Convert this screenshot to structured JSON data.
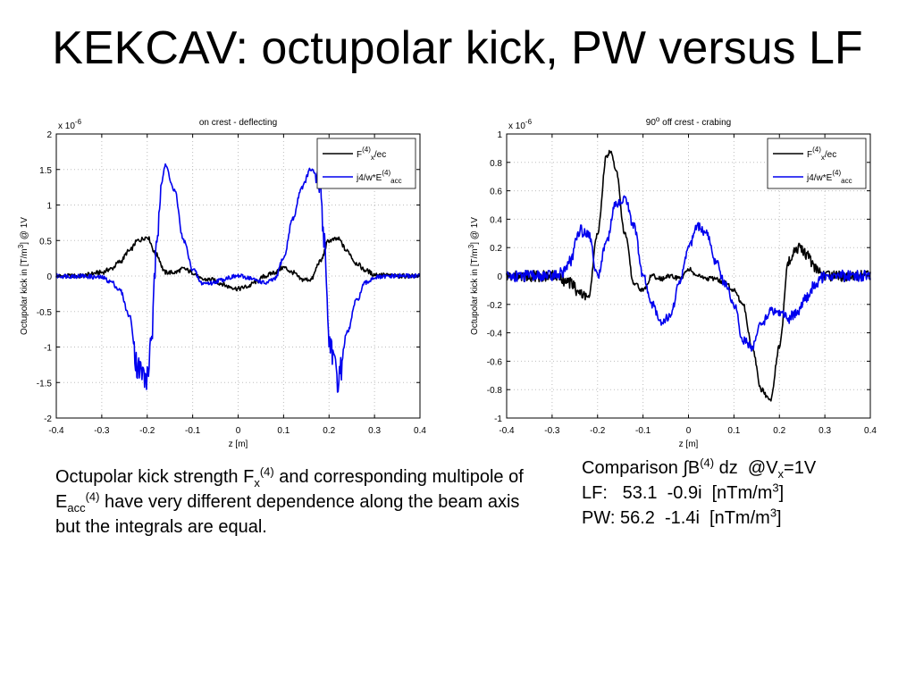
{
  "slide": {
    "title": "KEKCAV: octupolar kick, PW versus LF"
  },
  "caption": {
    "part1": "Octupolar kick strength F",
    "sub1": "x",
    "sup1": "(4)",
    "part2": " and corresponding multipole of E",
    "sub2": "acc",
    "sup2": "(4)",
    "part3": " have very different dependence along the beam axis but the integrals are equal."
  },
  "comparison": {
    "line1_a": "Comparison ∫B",
    "line1_sup": "(4)",
    "line1_b": " dz  @V",
    "line1_sub": "x",
    "line1_c": "=1V",
    "line2_a": "LF:   53.1  -0.9i  [nTm/m",
    "line2_sup": "3",
    "line2_b": "]",
    "line3_a": "PW: 56.2  -1.4i  [nTm/m",
    "line3_sup": "3",
    "line3_b": "]"
  },
  "colors": {
    "series_fx": "#000000",
    "series_eacc": "#0000ee",
    "axes": "#000000",
    "grid": "#bdbdbd"
  },
  "chart_data": [
    {
      "type": "line",
      "title": "on crest - deflecting",
      "title_sup": "",
      "title_rest": "",
      "xlabel": "z [m]",
      "ylabel_a": "Octupolar kick in [T/m",
      "ylabel_sup": "3",
      "ylabel_b": "] @ 1V",
      "exponent_base": "x 10",
      "exponent_power": "-6",
      "xlim": [
        -0.4,
        0.4
      ],
      "ylim": [
        -2,
        2
      ],
      "xticks": [
        -0.4,
        -0.3,
        -0.2,
        -0.1,
        0,
        0.1,
        0.2,
        0.3,
        0.4
      ],
      "xtick_labels": [
        "-0.4",
        "-0.3",
        "-0.2",
        "-0.1",
        "0",
        "0.1",
        "0.2",
        "0.3",
        "0.4"
      ],
      "yticks": [
        -2,
        -1.5,
        -1,
        -0.5,
        0,
        0.5,
        1,
        1.5,
        2
      ],
      "ytick_labels": [
        "-2",
        "-1.5",
        "-1",
        "-0.5",
        "0",
        "0.5",
        "1",
        "1.5",
        "2"
      ],
      "grid": true,
      "legend_position": "top-right",
      "legend": [
        {
          "base": "F",
          "sub": "x",
          "sup": "(4)",
          "rest": "/ec"
        },
        {
          "base": "j4/w*E",
          "sub": "acc",
          "sup": "(4)",
          "rest": ""
        }
      ],
      "series": [
        {
          "name": "Fx(4)/ec",
          "color": "#000000",
          "x": [
            -0.4,
            -0.35,
            -0.3,
            -0.28,
            -0.26,
            -0.24,
            -0.22,
            -0.2,
            -0.18,
            -0.16,
            -0.14,
            -0.12,
            -0.1,
            -0.08,
            -0.06,
            -0.04,
            -0.02,
            0,
            0.02,
            0.04,
            0.06,
            0.08,
            0.1,
            0.12,
            0.14,
            0.16,
            0.18,
            0.2,
            0.22,
            0.24,
            0.26,
            0.28,
            0.3,
            0.35,
            0.4
          ],
          "y": [
            0,
            0,
            0.05,
            0.1,
            0.2,
            0.35,
            0.5,
            0.55,
            0.3,
            0.05,
            0.05,
            0.1,
            0.05,
            -0.05,
            -0.05,
            -0.1,
            -0.15,
            -0.18,
            -0.15,
            -0.08,
            0.0,
            0.05,
            0.12,
            0.05,
            -0.05,
            -0.05,
            0.2,
            0.5,
            0.52,
            0.35,
            0.18,
            0.08,
            0.02,
            0,
            0
          ]
        },
        {
          "name": "j4/w*Eacc(4)",
          "color": "#0000ee",
          "x": [
            -0.4,
            -0.35,
            -0.3,
            -0.28,
            -0.26,
            -0.24,
            -0.22,
            -0.2,
            -0.19,
            -0.18,
            -0.17,
            -0.16,
            -0.14,
            -0.12,
            -0.1,
            -0.08,
            -0.06,
            -0.04,
            -0.02,
            0,
            0.02,
            0.04,
            0.06,
            0.08,
            0.1,
            0.12,
            0.14,
            0.16,
            0.18,
            0.19,
            0.2,
            0.22,
            0.24,
            0.26,
            0.28,
            0.3,
            0.35,
            0.4
          ],
          "y": [
            0,
            0,
            -0.02,
            -0.08,
            -0.2,
            -0.55,
            -1.3,
            -1.45,
            -0.8,
            0.3,
            1.3,
            1.55,
            1.2,
            0.5,
            0.1,
            -0.1,
            -0.1,
            -0.06,
            -0.02,
            0.0,
            -0.02,
            -0.06,
            -0.1,
            -0.05,
            0.25,
            0.8,
            1.25,
            1.5,
            1.3,
            0.5,
            -0.9,
            -1.45,
            -0.8,
            -0.35,
            -0.1,
            -0.02,
            0,
            0
          ]
        }
      ]
    },
    {
      "type": "line",
      "title": "90",
      "title_sup": "o",
      "title_rest": " off crest - crabing",
      "xlabel": "z [m]",
      "ylabel_a": "Octupolar kick in [T/m",
      "ylabel_sup": "3",
      "ylabel_b": "] @ 1V",
      "exponent_base": "x 10",
      "exponent_power": "-6",
      "xlim": [
        -0.4,
        0.4
      ],
      "ylim": [
        -1,
        1
      ],
      "xticks": [
        -0.4,
        -0.3,
        -0.2,
        -0.1,
        0,
        0.1,
        0.2,
        0.3,
        0.4
      ],
      "xtick_labels": [
        "-0.4",
        "-0.3",
        "-0.2",
        "-0.1",
        "0",
        "0.1",
        "0.2",
        "0.3",
        "0.4"
      ],
      "yticks": [
        -1,
        -0.8,
        -0.6,
        -0.4,
        -0.2,
        0,
        0.2,
        0.4,
        0.6,
        0.8,
        1
      ],
      "ytick_labels": [
        "-1",
        "-0.8",
        "-0.6",
        "-0.4",
        "-0.2",
        "0",
        "0.2",
        "0.4",
        "0.6",
        "0.8",
        "1"
      ],
      "grid": true,
      "legend_position": "top-right",
      "legend": [
        {
          "base": "F",
          "sub": "x",
          "sup": "(4)",
          "rest": "/ec"
        },
        {
          "base": "j4/w*E",
          "sub": "acc",
          "sup": "(4)",
          "rest": ""
        }
      ],
      "series": [
        {
          "name": "Fx(4)/ec",
          "color": "#000000",
          "x": [
            -0.4,
            -0.35,
            -0.3,
            -0.26,
            -0.24,
            -0.22,
            -0.2,
            -0.18,
            -0.17,
            -0.16,
            -0.14,
            -0.12,
            -0.1,
            -0.08,
            -0.06,
            -0.04,
            -0.02,
            0,
            0.02,
            0.04,
            0.06,
            0.08,
            0.1,
            0.12,
            0.14,
            0.16,
            0.18,
            0.2,
            0.22,
            0.24,
            0.26,
            0.28,
            0.3,
            0.35,
            0.4
          ],
          "y": [
            0,
            0,
            0,
            -0.05,
            -0.12,
            -0.15,
            0.3,
            0.85,
            0.88,
            0.75,
            0.3,
            -0.05,
            -0.1,
            0.0,
            -0.02,
            0.0,
            -0.02,
            0.05,
            0.0,
            -0.02,
            -0.02,
            -0.05,
            -0.1,
            -0.2,
            -0.5,
            -0.8,
            -0.88,
            -0.5,
            0.1,
            0.2,
            0.15,
            0.05,
            0,
            0,
            0
          ]
        },
        {
          "name": "j4/w*Eacc(4)",
          "color": "#0000ee",
          "x": [
            -0.4,
            -0.35,
            -0.3,
            -0.28,
            -0.26,
            -0.24,
            -0.22,
            -0.2,
            -0.18,
            -0.16,
            -0.14,
            -0.12,
            -0.1,
            -0.08,
            -0.06,
            -0.04,
            -0.02,
            0,
            0.02,
            0.04,
            0.06,
            0.08,
            0.1,
            0.12,
            0.14,
            0.16,
            0.18,
            0.2,
            0.22,
            0.24,
            0.26,
            0.28,
            0.3,
            0.35,
            0.4
          ],
          "y": [
            0,
            0,
            0,
            0.02,
            0.1,
            0.32,
            0.3,
            0.0,
            0.25,
            0.5,
            0.55,
            0.35,
            0.0,
            -0.2,
            -0.32,
            -0.28,
            -0.05,
            0.2,
            0.35,
            0.3,
            0.1,
            -0.05,
            -0.2,
            -0.45,
            -0.5,
            -0.35,
            -0.25,
            -0.25,
            -0.3,
            -0.25,
            -0.15,
            -0.05,
            0,
            0,
            0
          ]
        }
      ]
    }
  ]
}
